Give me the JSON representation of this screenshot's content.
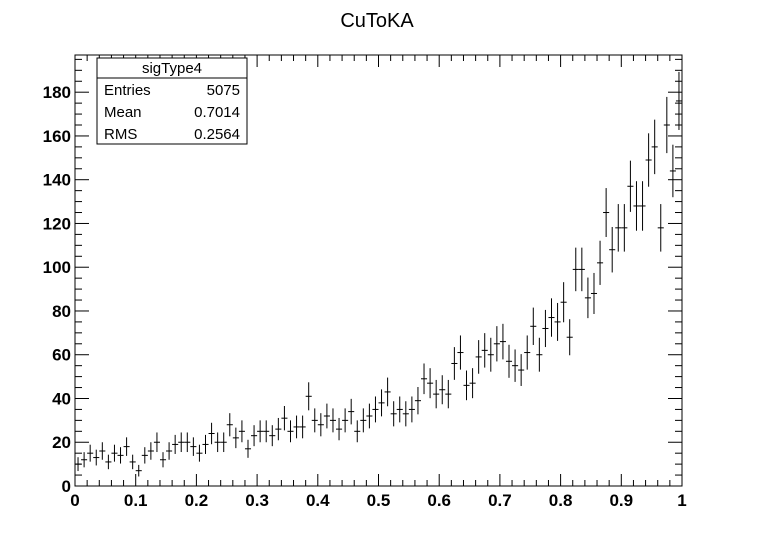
{
  "chart_data": {
    "type": "histogram",
    "title": "CuToKA",
    "xlabel": "",
    "ylabel": "",
    "xlim": [
      0,
      1
    ],
    "ylim": [
      0,
      197
    ],
    "grid": false,
    "bin_width": 0.01,
    "x_ticks": [
      "0",
      "0.1",
      "0.2",
      "0.3",
      "0.4",
      "0.5",
      "0.6",
      "0.7",
      "0.8",
      "0.9",
      "1"
    ],
    "y_ticks": [
      "0",
      "20",
      "40",
      "60",
      "80",
      "100",
      "120",
      "140",
      "160",
      "180"
    ],
    "stats_box": {
      "title": "sigType4",
      "placement": "top-left",
      "rows": [
        {
          "label": "Entries",
          "value": "5075"
        },
        {
          "label": "Mean",
          "value": "0.7014"
        },
        {
          "label": "RMS",
          "value": "0.2564"
        }
      ]
    },
    "values": [
      10,
      12,
      15,
      13,
      16,
      11,
      15,
      14,
      18,
      11,
      7,
      14,
      16,
      20,
      12,
      16,
      19,
      20,
      20,
      18,
      15,
      19,
      24,
      20,
      20,
      28,
      22,
      25,
      17,
      23,
      25,
      25,
      23,
      26,
      31,
      25,
      27,
      27,
      41,
      30,
      28,
      32,
      30,
      26,
      30,
      34,
      25,
      30,
      32,
      35,
      38,
      43,
      33,
      35,
      33,
      35,
      39,
      49,
      47,
      42,
      44,
      42,
      56,
      61,
      46,
      47,
      59,
      62,
      60,
      65,
      66,
      57,
      55,
      53,
      61,
      73,
      60,
      72,
      77,
      75,
      84,
      68,
      99,
      99,
      86,
      88,
      102,
      125,
      108,
      118,
      118,
      137,
      128,
      128,
      149,
      155,
      118,
      165,
      144,
      176
    ]
  }
}
